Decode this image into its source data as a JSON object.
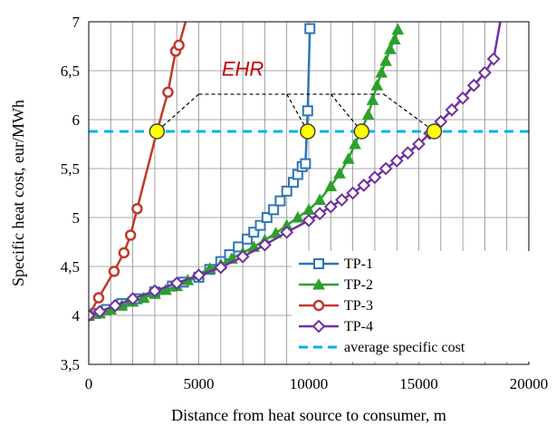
{
  "chart_data": {
    "type": "line",
    "title": "",
    "xlabel": "Distance from heat source to consumer, m",
    "ylabel": "Specific heat cost, eur/MWh",
    "xlim": [
      0,
      20000
    ],
    "ylim": [
      3.5,
      7
    ],
    "x_ticks": [
      0,
      5000,
      10000,
      15000,
      20000
    ],
    "x_tick_labels": [
      "0",
      "5000",
      "10000",
      "15000",
      "20000"
    ],
    "y_ticks": [
      3.5,
      4,
      4.5,
      5,
      5.5,
      6,
      6.5,
      7
    ],
    "y_tick_labels": [
      "3,5",
      "4",
      "4,5",
      "5",
      "5,5",
      "6",
      "6,5",
      "7"
    ],
    "grid": true,
    "legend_position": "bottom-right",
    "series": [
      {
        "name": "TP-1",
        "color": "#2e75b6",
        "marker": "square",
        "x": [
          0,
          300,
          800,
          1500,
          2200,
          3000,
          3800,
          4300,
          5000,
          5500,
          6000,
          6400,
          6800,
          7200,
          7500,
          7800,
          8100,
          8400,
          8700,
          9000,
          9300,
          9500,
          9700,
          9850,
          9950,
          10050
        ],
        "y": [
          4.0,
          4.02,
          4.06,
          4.12,
          4.17,
          4.24,
          4.3,
          4.34,
          4.39,
          4.47,
          4.55,
          4.62,
          4.7,
          4.78,
          4.85,
          4.92,
          5.0,
          5.08,
          5.17,
          5.27,
          5.36,
          5.44,
          5.52,
          5.55,
          6.09,
          6.93
        ]
      },
      {
        "name": "TP-2",
        "color": "#2ca02c",
        "marker": "triangle",
        "x": [
          0,
          500,
          1000,
          1500,
          2000,
          2500,
          3000,
          3500,
          4000,
          4500,
          5000,
          5500,
          6000,
          6500,
          7000,
          7500,
          8000,
          8500,
          9000,
          9500,
          10000,
          10500,
          11000,
          11400,
          11800,
          12100,
          12400,
          12700,
          12900,
          13100,
          13300,
          13500,
          13700,
          13900,
          14050
        ],
        "y": [
          4.0,
          4.02,
          4.06,
          4.1,
          4.14,
          4.18,
          4.22,
          4.26,
          4.3,
          4.36,
          4.42,
          4.48,
          4.52,
          4.58,
          4.64,
          4.7,
          4.77,
          4.84,
          4.92,
          5.0,
          5.08,
          5.18,
          5.32,
          5.45,
          5.6,
          5.75,
          5.9,
          6.05,
          6.2,
          6.35,
          6.48,
          6.6,
          6.72,
          6.82,
          6.92
        ]
      },
      {
        "name": "TP-3",
        "color": "#c0392b",
        "marker": "circle",
        "x": [
          0,
          450,
          1150,
          1600,
          1900,
          2200,
          3100,
          3600,
          3950,
          4100,
          4400
        ],
        "y": [
          4.0,
          4.18,
          4.45,
          4.64,
          4.82,
          5.09,
          5.88,
          6.28,
          6.7,
          6.76,
          7.0
        ]
      },
      {
        "name": "TP-4",
        "color": "#7030a0",
        "marker": "diamond",
        "x": [
          0,
          500,
          1200,
          2000,
          3000,
          4000,
          5000,
          6000,
          7000,
          8000,
          9000,
          10000,
          10500,
          11000,
          11500,
          12000,
          12500,
          13000,
          13500,
          14000,
          14500,
          15000,
          15500,
          16000,
          16500,
          17000,
          17500,
          18000,
          18400,
          18700
        ],
        "y": [
          4.0,
          4.04,
          4.1,
          4.17,
          4.25,
          4.33,
          4.41,
          4.49,
          4.6,
          4.72,
          4.85,
          4.97,
          5.04,
          5.11,
          5.18,
          5.25,
          5.33,
          5.41,
          5.5,
          5.58,
          5.66,
          5.75,
          5.86,
          5.98,
          6.1,
          6.22,
          6.35,
          6.48,
          6.62,
          7.0
        ]
      },
      {
        "name": "average specific cost",
        "color": "#00b0f0",
        "dashed": true,
        "x": [
          0,
          20000
        ],
        "y": [
          5.88,
          5.88
        ]
      }
    ],
    "highlight_points": {
      "color": "#ffff00",
      "x": [
        3100,
        9950,
        12400,
        15700
      ],
      "y": [
        5.88,
        5.88,
        5.88,
        5.88
      ]
    },
    "annotation": {
      "text": "EHR",
      "color": "#c00000",
      "anchor_x": 7000,
      "anchor_y": 6.45,
      "bar_y": 6.26,
      "bar_x_start": 5000,
      "bar_x_end": 13400
    }
  }
}
